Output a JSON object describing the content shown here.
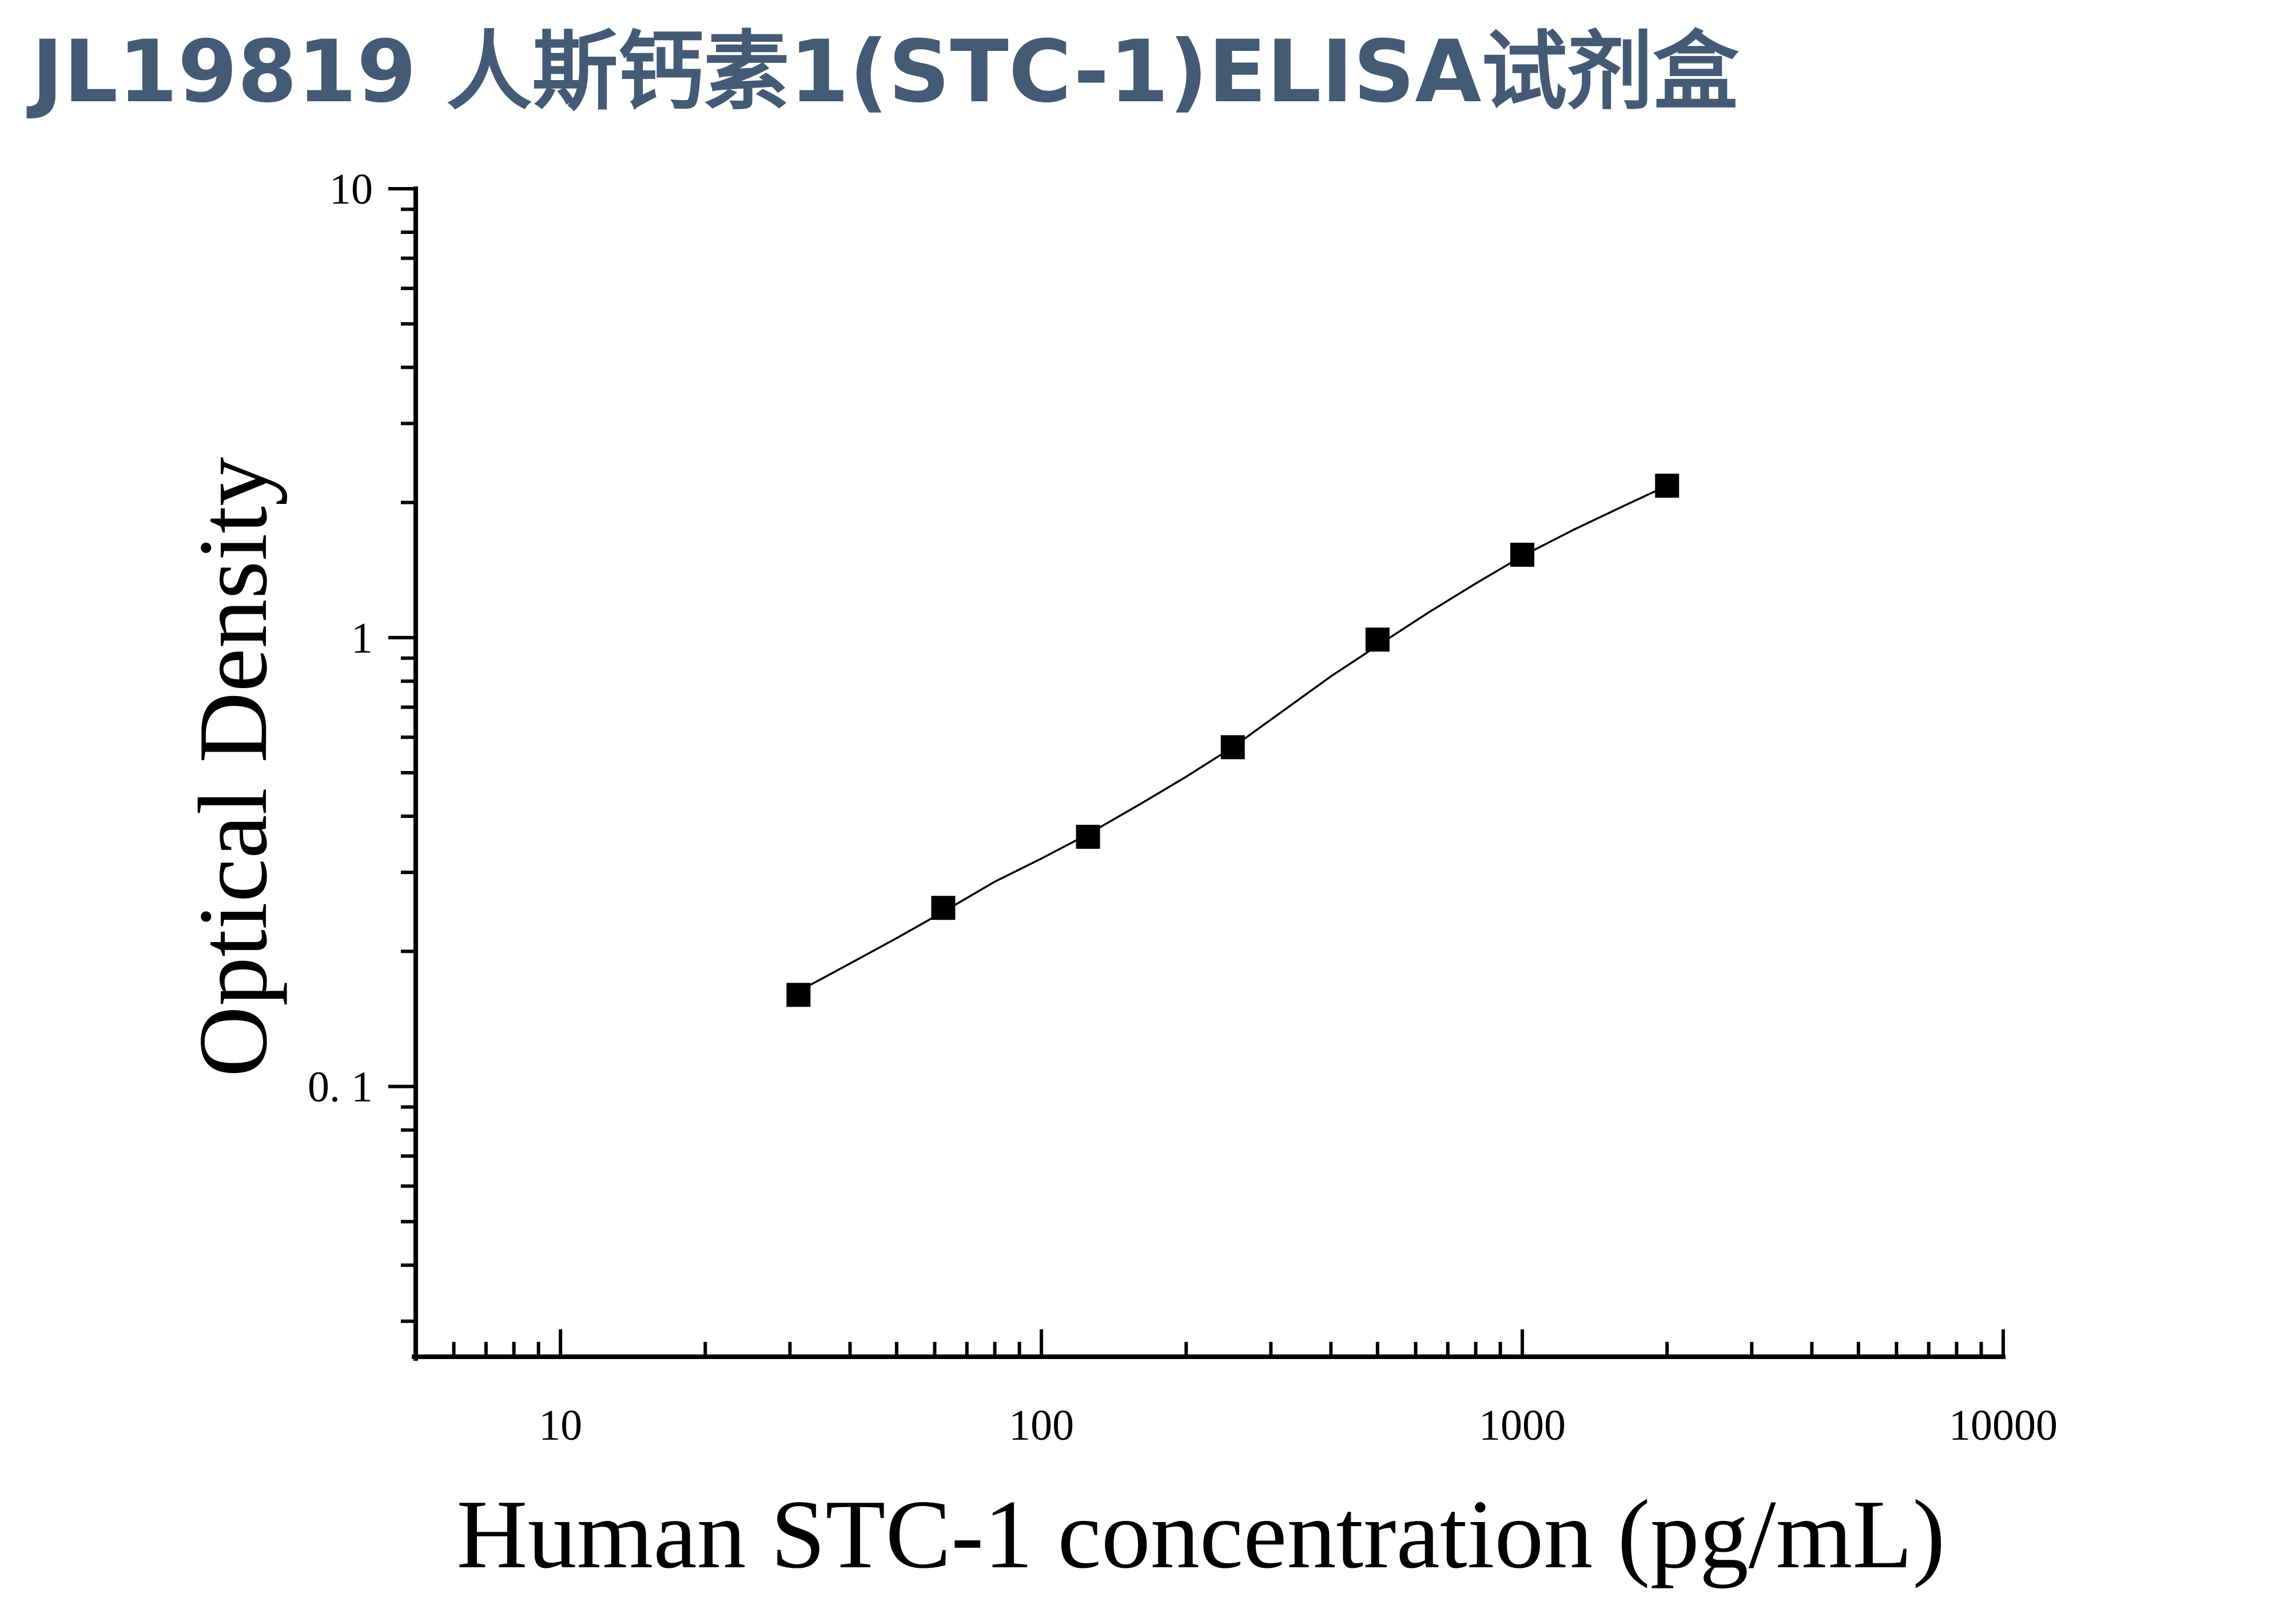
{
  "title": "JL19819 人斯钙素1(STC-1)ELISA试剂盒",
  "chart_data": {
    "type": "scatter",
    "title": "JL19819 人斯钙素1(STC-1)ELISA试剂盒",
    "xlabel": "Human STC-1 concentration (pg/mL)",
    "ylabel": "Optical Density",
    "x_scale": "log",
    "y_scale": "log",
    "xlim": [
      5,
      10000
    ],
    "ylim": [
      0.025,
      10
    ],
    "x_ticks": [
      {
        "value": 10,
        "label": "10"
      },
      {
        "value": 100,
        "label": "100"
      },
      {
        "value": 1000,
        "label": "1000"
      },
      {
        "value": 10000,
        "label": "10000"
      }
    ],
    "y_ticks": [
      {
        "value": 0.1,
        "label": "0. 1"
      },
      {
        "value": 1,
        "label": "1"
      },
      {
        "value": 10,
        "label": "10"
      }
    ],
    "grid": false,
    "legend": "none",
    "series": [
      {
        "marker": "square",
        "x": [
          31.25,
          62.5,
          125,
          250,
          500,
          1000,
          2000
        ],
        "y": [
          0.16,
          0.25,
          0.36,
          0.57,
          0.99,
          1.53,
          2.18
        ]
      }
    ],
    "fit_curve": {
      "style": "line",
      "x": [
        31.25,
        40,
        50,
        62.5,
        80,
        100,
        125,
        160,
        200,
        250,
        320,
        400,
        500,
        640,
        800,
        1000,
        1280,
        1600,
        2000
      ],
      "y": [
        0.163,
        0.188,
        0.214,
        0.245,
        0.286,
        0.322,
        0.365,
        0.425,
        0.49,
        0.57,
        0.69,
        0.82,
        0.96,
        1.14,
        1.32,
        1.52,
        1.74,
        1.95,
        2.18
      ]
    },
    "colors": {
      "axis": "#000000",
      "marker": "#000000",
      "curve": "#000000",
      "title": "#455a74"
    }
  }
}
